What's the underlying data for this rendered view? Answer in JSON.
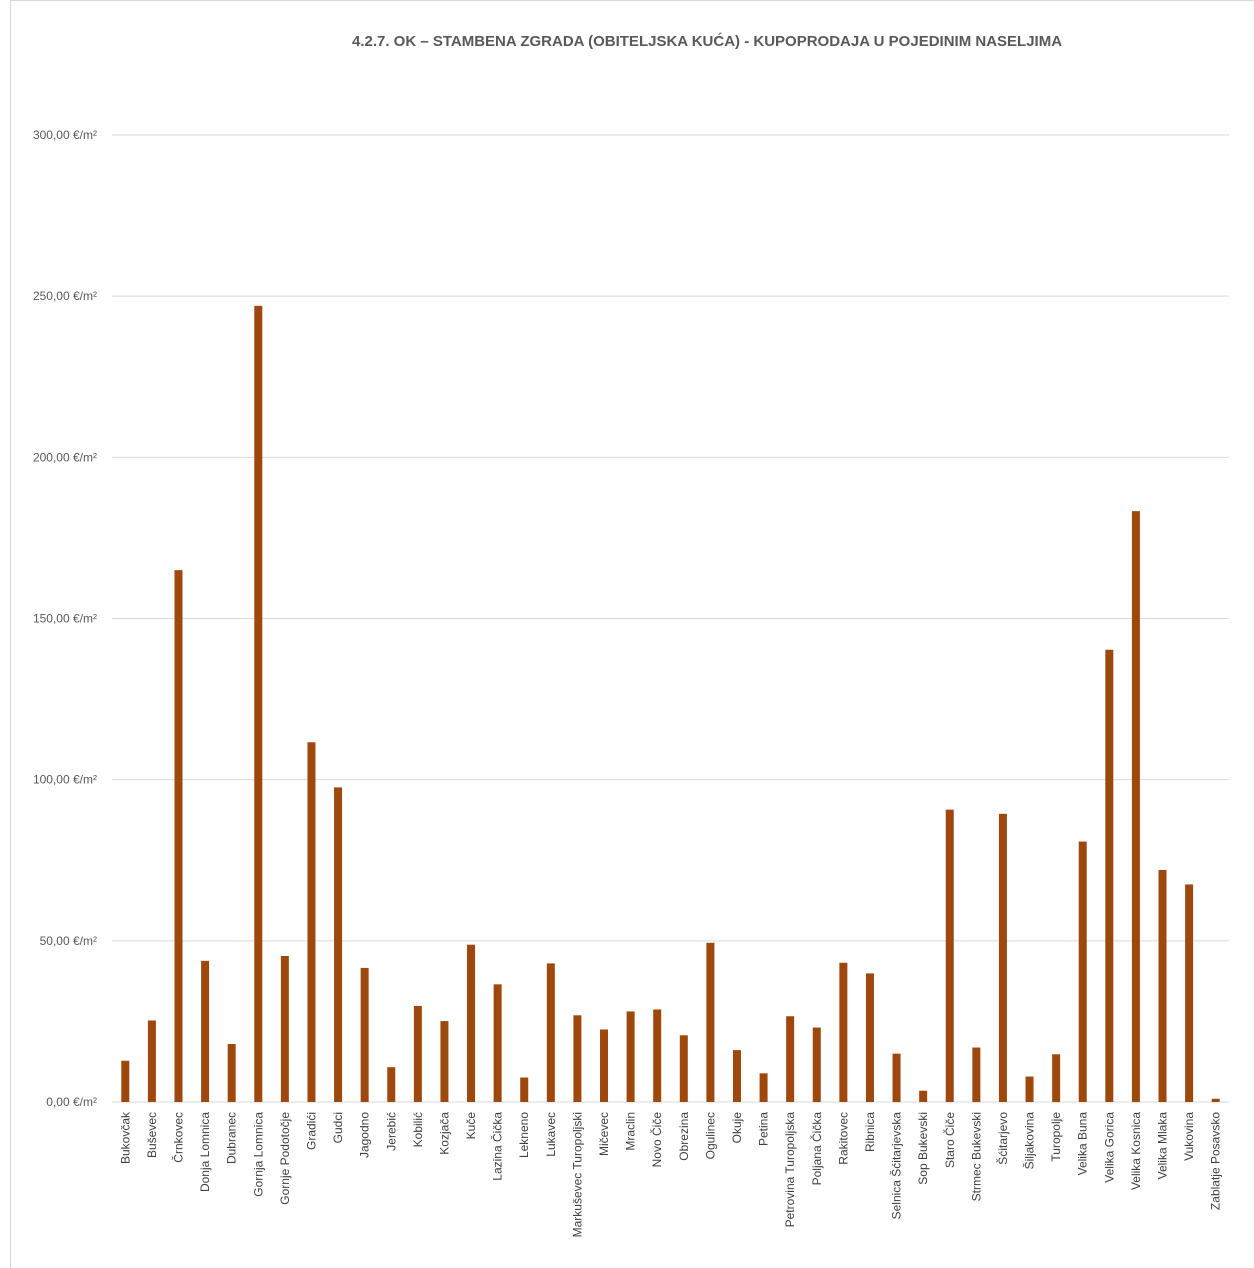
{
  "chart_data": {
    "type": "bar",
    "title": "4.2.7. OK – STAMBENA ZGRADA (OBITELJSKA KUĆA) - KUPOPRODAJA U POJEDINIM NASELJIMA",
    "xlabel": "",
    "ylabel": "",
    "ylim": [
      0,
      300
    ],
    "yticks": [
      "0,00 €/m²",
      "50,00 €/m²",
      "100,00 €/m²",
      "150,00 €/m²",
      "200,00 €/m²",
      "250,00 €/m²",
      "300,00 €/m²"
    ],
    "grid": true,
    "legend": "none",
    "bar_color": "#9E480E",
    "categories": [
      "Bukovčak",
      "Buševec",
      "Črnkovec",
      "Donja Lomnica",
      "Dubranec",
      "Gornja Lomnica",
      "Gornje Podotočje",
      "Gradići",
      "Gudci",
      "Jagodno",
      "Jerebić",
      "Kobilić",
      "Kozjača",
      "Kuče",
      "Lazina Čička",
      "Lekneno",
      "Lukavec",
      "Markuševec Turopoljski",
      "Mičevec",
      "Mraclin",
      "Novo Čiče",
      "Obrezina",
      "Ogulinec",
      "Okuje",
      "Petina",
      "Petrovina Turopoljska",
      "Poljana Čička",
      "Rakitovec",
      "Ribnica",
      "Selnica Šćitarjevska",
      "Sop Bukevski",
      "Staro Čiče",
      "Strmec Bukevski",
      "Šćitarjevo",
      "Šiljakovina",
      "Turopolje",
      "Velika Buna",
      "Velika Gorica",
      "Velika Kosnica",
      "Velika Mlaka",
      "Vukovina",
      "Zablatje Posavsko"
    ],
    "values": [
      12.8,
      25.3,
      165.0,
      43.8,
      18.0,
      247.0,
      45.3,
      111.6,
      97.6,
      41.6,
      10.8,
      29.8,
      25.1,
      48.8,
      36.5,
      7.6,
      43.0,
      26.9,
      22.5,
      28.1,
      28.7,
      20.7,
      49.4,
      16.1,
      8.9,
      26.6,
      23.1,
      43.2,
      39.9,
      15.0,
      3.5,
      90.7,
      16.9,
      89.4,
      7.9,
      14.8,
      80.8,
      140.3,
      183.3,
      72.0,
      67.5,
      1.0
    ]
  }
}
